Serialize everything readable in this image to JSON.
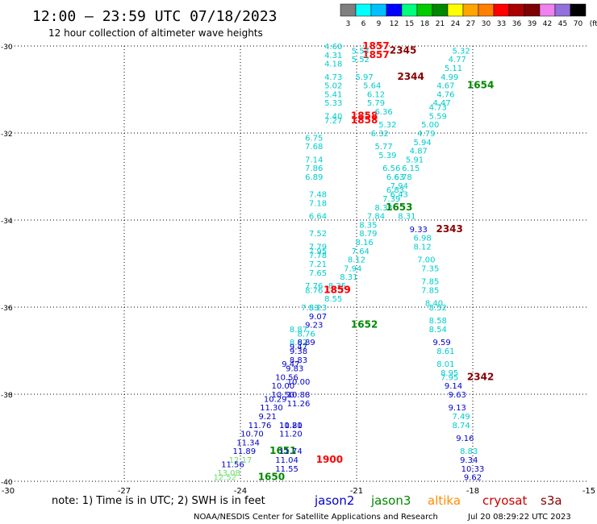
{
  "header": {
    "title": "12:00 – 23:59 UTC 07/18/2023",
    "subtitle": "12 hour collection of altimeter wave heights"
  },
  "colorbar": {
    "labels": [
      "3",
      "6",
      "9",
      "12",
      "15",
      "18",
      "21",
      "24",
      "27",
      "30",
      "33",
      "36",
      "39",
      "42",
      "45",
      "70",
      "(ft)"
    ],
    "colors": [
      "#7f7f7f",
      "#00ffff",
      "#00bfff",
      "#0000ff",
      "#00ff7f",
      "#00cc00",
      "#008800",
      "#ffff00",
      "#ffa500",
      "#ff7f00",
      "#ff0000",
      "#aa0000",
      "#7f0000",
      "#ee82ee",
      "#9370db",
      "#000000"
    ]
  },
  "footer": {
    "note": "note:  1) Time is in UTC;  2) SWH is in feet",
    "legend": [
      {
        "name": "jason2",
        "color": "#0000cc"
      },
      {
        "name": "jason3",
        "color": "#008800"
      },
      {
        "name": "altika",
        "color": "#ff8c00"
      },
      {
        "name": "cryosat",
        "color": "#cc0000"
      },
      {
        "name": "s3a",
        "color": "#880000"
      }
    ],
    "credit": "NOAA/NESDIS Center for Satellite Applications and Research",
    "timestamp": "Jul 20 08:29:22 UTC 2023"
  },
  "chart_data": {
    "type": "scatter",
    "xlim": [
      -30,
      -15
    ],
    "ylim": [
      -40,
      -30
    ],
    "xticks": [
      -30,
      -27,
      -24,
      -21,
      -18,
      -15
    ],
    "yticks": [
      -30,
      -32,
      -34,
      -36,
      -38,
      -40
    ],
    "grid": true,
    "labels": [
      {
        "x": -21.6,
        "y": -30.0,
        "text": "4.60",
        "color": "#00cccc"
      },
      {
        "x": -20.5,
        "y": -30.0,
        "text": "1857",
        "color": "#ff0000"
      },
      {
        "x": -20.9,
        "y": -30.1,
        "text": "5.54",
        "color": "#00cccc"
      },
      {
        "x": -19.8,
        "y": -30.1,
        "text": "2345",
        "color": "#880000"
      },
      {
        "x": -21.6,
        "y": -30.2,
        "text": "4.31",
        "color": "#00cccc"
      },
      {
        "x": -20.5,
        "y": -30.2,
        "text": "1857",
        "color": "#ff0000"
      },
      {
        "x": -20.9,
        "y": -30.3,
        "text": "5.52",
        "color": "#00cccc"
      },
      {
        "x": -18.3,
        "y": -30.1,
        "text": "5.32",
        "color": "#00cccc"
      },
      {
        "x": -18.4,
        "y": -30.3,
        "text": "4.77",
        "color": "#00cccc"
      },
      {
        "x": -21.6,
        "y": -30.4,
        "text": "4.18",
        "color": "#00cccc"
      },
      {
        "x": -18.5,
        "y": -30.5,
        "text": "5.11",
        "color": "#00cccc"
      },
      {
        "x": -21.6,
        "y": -30.7,
        "text": "4.73",
        "color": "#00cccc"
      },
      {
        "x": -20.8,
        "y": -30.7,
        "text": "5.97",
        "color": "#00cccc"
      },
      {
        "x": -19.6,
        "y": -30.7,
        "text": "2344",
        "color": "#880000"
      },
      {
        "x": -18.6,
        "y": -30.7,
        "text": "4.99",
        "color": "#00cccc"
      },
      {
        "x": -21.6,
        "y": -30.9,
        "text": "5.02",
        "color": "#00cccc"
      },
      {
        "x": -20.6,
        "y": -30.9,
        "text": "5.64",
        "color": "#00cccc"
      },
      {
        "x": -18.7,
        "y": -30.9,
        "text": "4.67",
        "color": "#00cccc"
      },
      {
        "x": -17.8,
        "y": -30.9,
        "text": "1654",
        "color": "#008800"
      },
      {
        "x": -21.6,
        "y": -31.1,
        "text": "5.41",
        "color": "#00cccc"
      },
      {
        "x": -20.5,
        "y": -31.1,
        "text": "6.12",
        "color": "#00cccc"
      },
      {
        "x": -18.7,
        "y": -31.1,
        "text": "4.76",
        "color": "#00cccc"
      },
      {
        "x": -21.6,
        "y": -31.3,
        "text": "5.33",
        "color": "#00cccc"
      },
      {
        "x": -18.8,
        "y": -31.3,
        "text": "4.47",
        "color": "#00cccc"
      },
      {
        "x": -20.5,
        "y": -31.3,
        "text": "5.79",
        "color": "#00cccc"
      },
      {
        "x": -18.9,
        "y": -31.4,
        "text": "4.73",
        "color": "#00cccc"
      },
      {
        "x": -21.6,
        "y": -31.6,
        "text": "7.40",
        "color": "#00cccc"
      },
      {
        "x": -20.8,
        "y": -31.6,
        "text": "1858",
        "color": "#ff0000"
      },
      {
        "x": -20.3,
        "y": -31.5,
        "text": "6.36",
        "color": "#00cccc"
      },
      {
        "x": -18.9,
        "y": -31.6,
        "text": "5.59",
        "color": "#00cccc"
      },
      {
        "x": -21.6,
        "y": -31.7,
        "text": "7.27",
        "color": "#00cccc"
      },
      {
        "x": -20.8,
        "y": -31.7,
        "text": "1858",
        "color": "#ff0000"
      },
      {
        "x": -20.2,
        "y": -31.8,
        "text": "5.32",
        "color": "#00cccc"
      },
      {
        "x": -19.1,
        "y": -31.8,
        "text": "5.00",
        "color": "#00cccc"
      },
      {
        "x": -20.4,
        "y": -32.0,
        "text": "6.32",
        "color": "#00cccc"
      },
      {
        "x": -19.2,
        "y": -32.0,
        "text": "4.79",
        "color": "#00cccc"
      },
      {
        "x": -22.1,
        "y": -32.1,
        "text": "6.75",
        "color": "#00cccc"
      },
      {
        "x": -19.3,
        "y": -32.2,
        "text": "5.94",
        "color": "#00cccc"
      },
      {
        "x": -22.1,
        "y": -32.3,
        "text": "7.68",
        "color": "#00cccc"
      },
      {
        "x": -20.3,
        "y": -32.3,
        "text": "5.77",
        "color": "#00cccc"
      },
      {
        "x": -19.4,
        "y": -32.4,
        "text": "4.87",
        "color": "#00cccc"
      },
      {
        "x": -20.2,
        "y": -32.5,
        "text": "5.39",
        "color": "#00cccc"
      },
      {
        "x": -19.5,
        "y": -32.6,
        "text": "5.91",
        "color": "#00cccc"
      },
      {
        "x": -22.1,
        "y": -32.6,
        "text": "7.14",
        "color": "#00cccc"
      },
      {
        "x": -20.1,
        "y": -32.8,
        "text": "6.56",
        "color": "#00cccc"
      },
      {
        "x": -19.6,
        "y": -32.8,
        "text": "6.15",
        "color": "#00cccc"
      },
      {
        "x": -22.1,
        "y": -32.8,
        "text": "7.86",
        "color": "#00cccc"
      },
      {
        "x": -19.8,
        "y": -33.0,
        "text": "6.78",
        "color": "#00cccc"
      },
      {
        "x": -22.1,
        "y": -33.0,
        "text": "6.89",
        "color": "#00cccc"
      },
      {
        "x": -20.0,
        "y": -33.0,
        "text": "6.63",
        "color": "#00cccc"
      },
      {
        "x": -19.9,
        "y": -33.2,
        "text": "7.94",
        "color": "#00cccc"
      },
      {
        "x": -20.0,
        "y": -33.3,
        "text": "6.83",
        "color": "#00cccc"
      },
      {
        "x": -19.9,
        "y": -33.4,
        "text": "6.43",
        "color": "#00cccc"
      },
      {
        "x": -22.0,
        "y": -33.4,
        "text": "7.48",
        "color": "#00cccc"
      },
      {
        "x": -20.1,
        "y": -33.5,
        "text": "7.39",
        "color": "#00cccc"
      },
      {
        "x": -22.0,
        "y": -33.6,
        "text": "7.18",
        "color": "#00cccc"
      },
      {
        "x": -20.3,
        "y": -33.7,
        "text": "8.33",
        "color": "#00cccc"
      },
      {
        "x": -19.9,
        "y": -33.7,
        "text": "1653",
        "color": "#008800"
      },
      {
        "x": -22.0,
        "y": -33.9,
        "text": "6.64",
        "color": "#00cccc"
      },
      {
        "x": -20.5,
        "y": -33.9,
        "text": "7.84",
        "color": "#00cccc"
      },
      {
        "x": -19.7,
        "y": -33.9,
        "text": "8.31",
        "color": "#00cccc"
      },
      {
        "x": -20.7,
        "y": -34.1,
        "text": "8.35",
        "color": "#00cccc"
      },
      {
        "x": -19.4,
        "y": -34.2,
        "text": "9.33",
        "color": "#0000cc"
      },
      {
        "x": -18.6,
        "y": -34.2,
        "text": "2343",
        "color": "#880000"
      },
      {
        "x": -20.7,
        "y": -34.3,
        "text": "8.79",
        "color": "#00cccc"
      },
      {
        "x": -22.0,
        "y": -34.3,
        "text": "7.52",
        "color": "#00cccc"
      },
      {
        "x": -19.3,
        "y": -34.4,
        "text": "6.98",
        "color": "#00cccc"
      },
      {
        "x": -20.8,
        "y": -34.5,
        "text": "8.16",
        "color": "#00cccc"
      },
      {
        "x": -22.0,
        "y": -34.6,
        "text": "7.79",
        "color": "#00cccc"
      },
      {
        "x": -19.3,
        "y": -34.6,
        "text": "8.12",
        "color": "#00cccc"
      },
      {
        "x": -20.9,
        "y": -34.7,
        "text": "7.64",
        "color": "#00cccc"
      },
      {
        "x": -22.0,
        "y": -34.7,
        "text": "7.95",
        "color": "#00cccc"
      },
      {
        "x": -22.0,
        "y": -34.8,
        "text": "7.78",
        "color": "#00cccc"
      },
      {
        "x": -21.0,
        "y": -34.9,
        "text": "8.12",
        "color": "#00cccc"
      },
      {
        "x": -19.2,
        "y": -34.9,
        "text": "7.00",
        "color": "#00cccc"
      },
      {
        "x": -22.0,
        "y": -35.0,
        "text": "7.21",
        "color": "#00cccc"
      },
      {
        "x": -21.1,
        "y": -35.1,
        "text": "7.94",
        "color": "#00cccc"
      },
      {
        "x": -19.1,
        "y": -35.1,
        "text": "7.35",
        "color": "#00cccc"
      },
      {
        "x": -22.0,
        "y": -35.2,
        "text": "7.65",
        "color": "#00cccc"
      },
      {
        "x": -21.2,
        "y": -35.3,
        "text": "8.31",
        "color": "#00cccc"
      },
      {
        "x": -19.1,
        "y": -35.4,
        "text": "7.85",
        "color": "#00cccc"
      },
      {
        "x": -22.1,
        "y": -35.5,
        "text": "7.76",
        "color": "#00cccc"
      },
      {
        "x": -21.5,
        "y": -35.5,
        "text": "8.35",
        "color": "#00cccc"
      },
      {
        "x": -22.1,
        "y": -35.6,
        "text": "8.76",
        "color": "#00cccc"
      },
      {
        "x": -21.5,
        "y": -35.6,
        "text": "1859",
        "color": "#ff0000"
      },
      {
        "x": -21.5,
        "y": -35.6,
        "text": "1859",
        "color": "#ff0000"
      },
      {
        "x": -19.1,
        "y": -35.6,
        "text": "7.85",
        "color": "#00cccc"
      },
      {
        "x": -21.6,
        "y": -35.8,
        "text": "8.55",
        "color": "#00cccc"
      },
      {
        "x": -19.0,
        "y": -35.9,
        "text": "8.40",
        "color": "#00cccc"
      },
      {
        "x": -22.0,
        "y": -36.0,
        "text": "8.23",
        "color": "#00cccc"
      },
      {
        "x": -22.2,
        "y": -36.0,
        "text": "7.53",
        "color": "#00cccc"
      },
      {
        "x": -18.9,
        "y": -36.0,
        "text": "8.52",
        "color": "#00cccc"
      },
      {
        "x": -22.0,
        "y": -36.2,
        "text": "9.07",
        "color": "#0000cc"
      },
      {
        "x": -18.9,
        "y": -36.3,
        "text": "8.58",
        "color": "#00cccc"
      },
      {
        "x": -20.8,
        "y": -36.4,
        "text": "1652",
        "color": "#008800"
      },
      {
        "x": -22.1,
        "y": -36.4,
        "text": "9.23",
        "color": "#0000cc"
      },
      {
        "x": -22.5,
        "y": -36.5,
        "text": "8.87",
        "color": "#00cccc"
      },
      {
        "x": -18.9,
        "y": -36.5,
        "text": "8.54",
        "color": "#00cccc"
      },
      {
        "x": -22.3,
        "y": -36.6,
        "text": "8.76",
        "color": "#00cccc"
      },
      {
        "x": -22.5,
        "y": -36.8,
        "text": "8.62",
        "color": "#00cccc"
      },
      {
        "x": -22.3,
        "y": -36.8,
        "text": "8.89",
        "color": "#0000cc"
      },
      {
        "x": -18.8,
        "y": -36.8,
        "text": "9.59",
        "color": "#0000cc"
      },
      {
        "x": -22.5,
        "y": -36.9,
        "text": "9.47",
        "color": "#0000cc"
      },
      {
        "x": -22.5,
        "y": -37.0,
        "text": "9.38",
        "color": "#0000cc"
      },
      {
        "x": -18.7,
        "y": -37.0,
        "text": "8.61",
        "color": "#00cccc"
      },
      {
        "x": -22.5,
        "y": -37.2,
        "text": "8.83",
        "color": "#0000cc"
      },
      {
        "x": -18.7,
        "y": -37.3,
        "text": "8.01",
        "color": "#00cccc"
      },
      {
        "x": -22.7,
        "y": -37.3,
        "text": "9.47",
        "color": "#0000cc"
      },
      {
        "x": -22.6,
        "y": -37.4,
        "text": "9.83",
        "color": "#0000cc"
      },
      {
        "x": -18.6,
        "y": -37.5,
        "text": "8.95",
        "color": "#00cccc"
      },
      {
        "x": -22.8,
        "y": -37.6,
        "text": "10.56",
        "color": "#0000cc"
      },
      {
        "x": -18.6,
        "y": -37.6,
        "text": "7.95",
        "color": "#00cccc"
      },
      {
        "x": -17.8,
        "y": -37.6,
        "text": "2342",
        "color": "#880000"
      },
      {
        "x": -22.5,
        "y": -37.7,
        "text": "10.00",
        "color": "#0000cc"
      },
      {
        "x": -22.9,
        "y": -37.8,
        "text": "10.00",
        "color": "#0000cc"
      },
      {
        "x": -18.5,
        "y": -37.8,
        "text": "9.14",
        "color": "#0000cc"
      },
      {
        "x": -22.9,
        "y": -38.0,
        "text": "10.50",
        "color": "#0000cc"
      },
      {
        "x": -22.5,
        "y": -38.0,
        "text": "10.88",
        "color": "#0000cc"
      },
      {
        "x": -18.4,
        "y": -38.0,
        "text": "9.63",
        "color": "#0000cc"
      },
      {
        "x": -23.1,
        "y": -38.1,
        "text": "10.29",
        "color": "#0000cc"
      },
      {
        "x": -23.2,
        "y": -38.3,
        "text": "11.30",
        "color": "#0000cc"
      },
      {
        "x": -22.5,
        "y": -38.2,
        "text": "11.26",
        "color": "#0000cc"
      },
      {
        "x": -18.4,
        "y": -38.3,
        "text": "9.13",
        "color": "#0000cc"
      },
      {
        "x": -23.3,
        "y": -38.5,
        "text": "9.21",
        "color": "#0000cc"
      },
      {
        "x": -18.3,
        "y": -38.5,
        "text": "7.49",
        "color": "#00cccc"
      },
      {
        "x": -23.5,
        "y": -38.7,
        "text": "11.76",
        "color": "#0000cc"
      },
      {
        "x": -22.7,
        "y": -38.7,
        "text": "11.21",
        "color": "#0000cc"
      },
      {
        "x": -22.7,
        "y": -38.7,
        "text": "10.80",
        "color": "#0000cc"
      },
      {
        "x": -18.3,
        "y": -38.7,
        "text": "8.74",
        "color": "#00cccc"
      },
      {
        "x": -23.7,
        "y": -38.9,
        "text": "10.70",
        "color": "#0000cc"
      },
      {
        "x": -22.7,
        "y": -38.9,
        "text": "11.20",
        "color": "#0000cc"
      },
      {
        "x": -18.2,
        "y": -39.0,
        "text": "9.16",
        "color": "#0000cc"
      },
      {
        "x": -23.8,
        "y": -39.1,
        "text": "11.34",
        "color": "#0000cc"
      },
      {
        "x": -23.9,
        "y": -39.3,
        "text": "11.89",
        "color": "#0000cc"
      },
      {
        "x": -22.9,
        "y": -39.3,
        "text": "1651",
        "color": "#008800"
      },
      {
        "x": -22.7,
        "y": -39.3,
        "text": "11.74",
        "color": "#0000cc"
      },
      {
        "x": -18.1,
        "y": -39.3,
        "text": "8.83",
        "color": "#00cccc"
      },
      {
        "x": -24.0,
        "y": -39.5,
        "text": "12.17",
        "color": "#66dd66"
      },
      {
        "x": -22.8,
        "y": -39.5,
        "text": "11.04",
        "color": "#0000cc"
      },
      {
        "x": -21.7,
        "y": -39.5,
        "text": "1900",
        "color": "#ff0000"
      },
      {
        "x": -18.1,
        "y": -39.5,
        "text": "9.34",
        "color": "#0000cc"
      },
      {
        "x": -24.2,
        "y": -39.6,
        "text": "11.56",
        "color": "#0000cc"
      },
      {
        "x": -22.8,
        "y": -39.7,
        "text": "11.55",
        "color": "#0000cc"
      },
      {
        "x": -18.0,
        "y": -39.7,
        "text": "10.33",
        "color": "#0000cc"
      },
      {
        "x": -24.3,
        "y": -39.8,
        "text": "13.08",
        "color": "#66dd66"
      },
      {
        "x": -24.4,
        "y": -39.9,
        "text": "12.52",
        "color": "#66dd66"
      },
      {
        "x": -23.2,
        "y": -39.9,
        "text": "1650",
        "color": "#008800"
      },
      {
        "x": -18.0,
        "y": -39.9,
        "text": "9.62",
        "color": "#0000cc"
      }
    ]
  }
}
